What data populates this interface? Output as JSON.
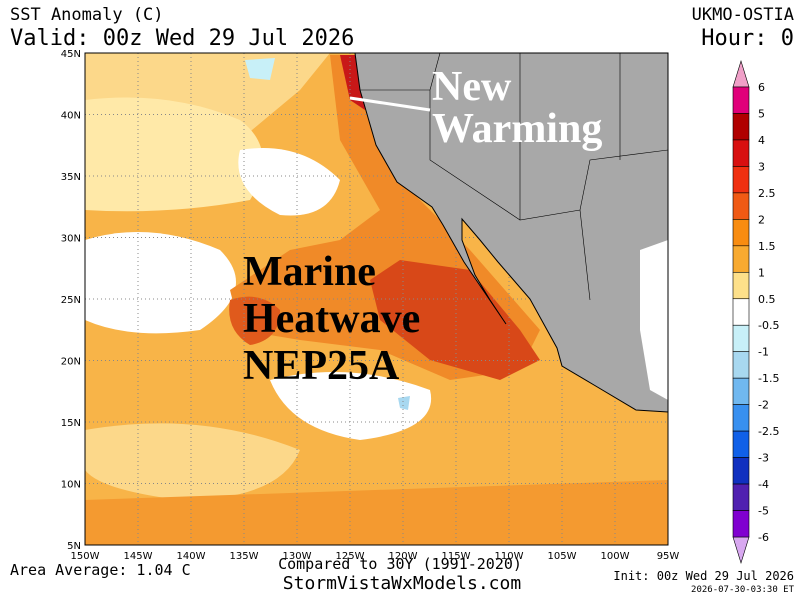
{
  "header": {
    "title": "SST Anomaly (C)",
    "valid": "Valid: 00z Wed 29 Jul 2026",
    "model": "UKMO-OSTIA",
    "hour": "Hour: 0"
  },
  "map": {
    "lat_labels": [
      "45N",
      "40N",
      "35N",
      "30N",
      "25N",
      "20N",
      "15N",
      "10N",
      "5N"
    ],
    "lon_labels": [
      "150W",
      "145W",
      "140W",
      "135W",
      "130W",
      "125W",
      "120W",
      "115W",
      "110W",
      "105W",
      "100W",
      "95W"
    ],
    "annotations": [
      {
        "lines": [
          "New",
          "Warming"
        ],
        "color": "#ffffff"
      },
      {
        "lines": [
          "Marine",
          "Heatwave",
          "NEP25A"
        ],
        "color": "#000000"
      }
    ]
  },
  "colorbar": {
    "labels": [
      6,
      5,
      4,
      3,
      2.5,
      2,
      1.5,
      1,
      0.5,
      -0.5,
      -1,
      -1.5,
      -2,
      -2.5,
      -3,
      -4,
      -5,
      -6
    ],
    "colors": [
      "#e0007a",
      "#b00000",
      "#d81010",
      "#f03010",
      "#f05a14",
      "#f88c10",
      "#f8aa30",
      "#fde08a",
      "#ffffff",
      "#c8f0f8",
      "#a8d8f0",
      "#70b8f0",
      "#3890f0",
      "#1060e8",
      "#1030c0",
      "#5020b0",
      "#8000d0"
    ],
    "top_color": "#f0a0c8",
    "bottom_color": "#d8a8f0"
  },
  "footer": {
    "average": "Area Average: 1.04 C",
    "compared": "Compared to 30Y (1991-2020)",
    "site": "StormVistaWxModels.com",
    "init": "Init: 00z Wed 29 Jul 2026",
    "stamp": "2026-07-30-03:30 ET"
  }
}
